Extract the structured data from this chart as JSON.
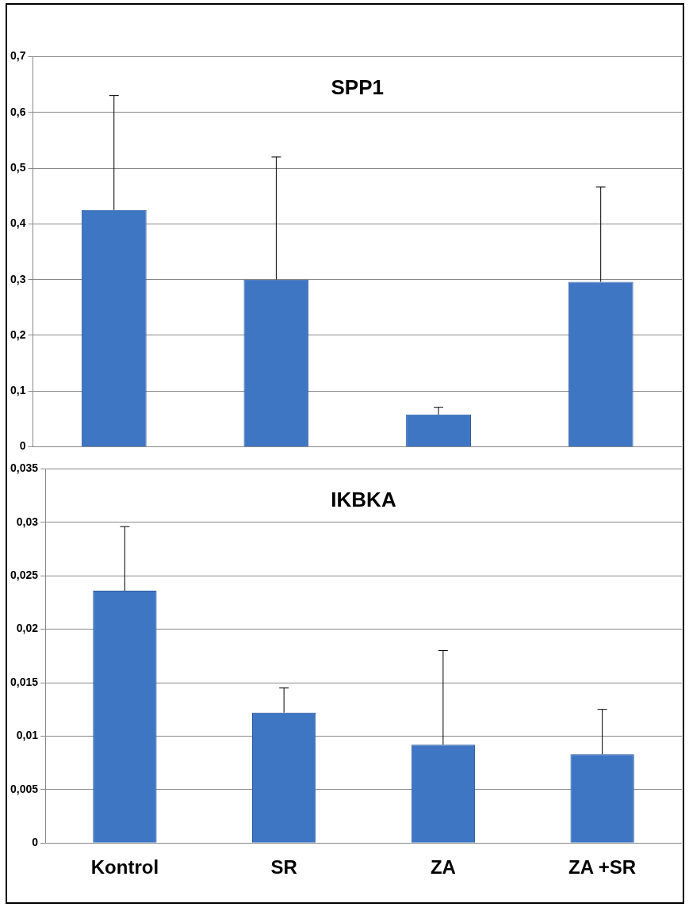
{
  "chart_data": [
    {
      "type": "bar",
      "title": "SPP1",
      "categories": [
        null,
        null,
        null,
        null
      ],
      "values": [
        0.425,
        0.3,
        0.058,
        0.296
      ],
      "color": "#3f76c4",
      "errors": [
        [
          0.425,
          0.63
        ],
        [
          0.3,
          0.52
        ],
        [
          0.058,
          0.071
        ],
        [
          0.296,
          0.466
        ]
      ],
      "ylim": [
        0,
        0.7
      ],
      "yticks": [
        {
          "value": 0,
          "label": "0"
        },
        {
          "value": 0.1,
          "label": "0,1"
        },
        {
          "value": 0.2,
          "label": "0,2"
        },
        {
          "value": 0.3,
          "label": "0,3"
        },
        {
          "value": 0.4,
          "label": "0,4"
        },
        {
          "value": 0.5,
          "label": "0,5"
        },
        {
          "value": 0.6,
          "label": "0,6"
        },
        {
          "value": 0.7,
          "label": "0,7"
        }
      ],
      "grid": "y",
      "tick_labels": "y"
    },
    {
      "type": "bar",
      "title": "IKBKA",
      "categories": [
        "Kontrol",
        "SR",
        "ZA",
        "ZA +SR"
      ],
      "values": [
        0.0236,
        0.0122,
        0.0092,
        0.0083
      ],
      "color": "#3f76c4",
      "errors": [
        [
          0.0236,
          0.0296
        ],
        [
          0.0122,
          0.0145
        ],
        [
          0.0092,
          0.018
        ],
        [
          0.0083,
          0.0125
        ]
      ],
      "ylim": [
        0,
        0.035
      ],
      "yticks": [
        {
          "value": 0,
          "label": "0"
        },
        {
          "value": 0.005,
          "label": "0,005"
        },
        {
          "value": 0.01,
          "label": "0,01"
        },
        {
          "value": 0.015,
          "label": "0,015"
        },
        {
          "value": 0.02,
          "label": "0,02"
        },
        {
          "value": 0.025,
          "label": "0,025"
        },
        {
          "value": 0.03,
          "label": "0,03"
        },
        {
          "value": 0.035,
          "label": "0,035"
        }
      ],
      "grid": "y"
    }
  ]
}
